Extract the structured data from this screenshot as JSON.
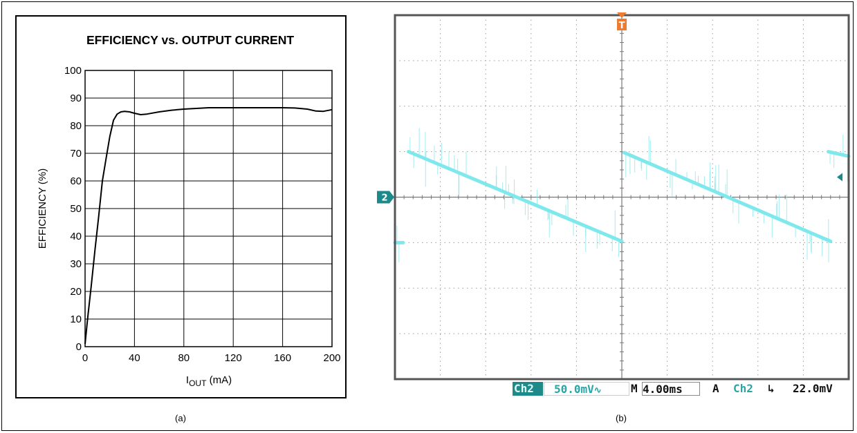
{
  "panel_a": {
    "caption": "(a)",
    "chart_data": {
      "type": "line",
      "title": "EFFICIENCY vs. OUTPUT CURRENT",
      "xlabel_main": "I",
      "xlabel_sub": "OUT",
      "xlabel_unit": " (mA)",
      "ylabel": "EFFICIENCY (%)",
      "xlim": [
        0,
        200
      ],
      "ylim": [
        0,
        100
      ],
      "xticks": [
        0,
        40,
        80,
        120,
        160,
        200
      ],
      "yticks": [
        0,
        10,
        20,
        30,
        40,
        50,
        60,
        70,
        80,
        90,
        100
      ],
      "grid": true,
      "series": [
        {
          "x": [
            0,
            2,
            5,
            8,
            11,
            14,
            17,
            20,
            23,
            26,
            29,
            32,
            36,
            40,
            45,
            50,
            60,
            70,
            80,
            100,
            120,
            140,
            160,
            170,
            180,
            187,
            193,
            200
          ],
          "y": [
            1,
            10,
            22,
            35,
            47,
            60,
            68,
            76,
            82,
            84.2,
            85,
            85.2,
            85,
            84.5,
            84,
            84.2,
            85,
            85.6,
            86,
            86.5,
            86.5,
            86.5,
            86.5,
            86.4,
            86,
            85.3,
            85.2,
            85.8
          ]
        }
      ]
    }
  },
  "panel_b": {
    "caption": "(b)",
    "colors": {
      "trace": "#7fe8ec",
      "grid": "#9a9a9a",
      "marker_ch2": "#1c8a8a",
      "trigger": "#f07a2e",
      "status_teal": "#1e8a8a"
    },
    "markers": {
      "channel": "2",
      "trigger": "T"
    },
    "status": {
      "ch_label": "Ch2",
      "volts_div": "50.0mV",
      "coupling_symbol": "∿",
      "m_label": "M",
      "time_div": "4.00ms",
      "a_label": "A",
      "trig_ch": "Ch2",
      "slope_symbol": "↳",
      "trig_level": "22.0mV"
    },
    "chart_data": {
      "type": "line",
      "x_divisions": 10,
      "y_divisions": 8,
      "x_unit_per_div": "4.00ms",
      "y_unit_per_div": "50.0mV",
      "grid": true,
      "series": [
        {
          "name": "Ch2",
          "segments": [
            {
              "x": [
                0.0,
                0.18
              ],
              "y": [
                -1.0,
                -1.0
              ]
            },
            {
              "x": [
                0.3,
                5.0
              ],
              "y": [
                1.0,
                -0.97
              ]
            },
            {
              "x": [
                5.05,
                9.6
              ],
              "y": [
                0.98,
                -0.97
              ]
            },
            {
              "x": [
                9.55,
                10.0
              ],
              "y": [
                1.0,
                0.9
              ]
            }
          ]
        }
      ]
    }
  }
}
